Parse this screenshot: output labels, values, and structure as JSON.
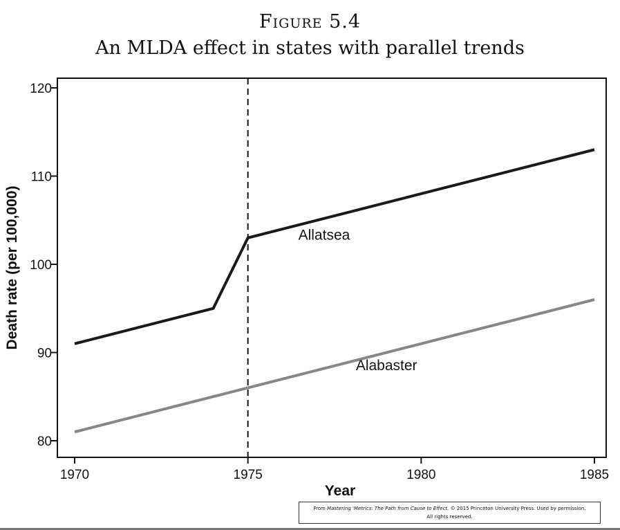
{
  "figure": {
    "label": "Figure 5.4",
    "title": "An MLDA effect in states with parallel trends"
  },
  "credit": {
    "prefix": "From ",
    "book": "Mastering 'Metrics: The Path from Cause to Effect.",
    "suffix": " © 2015 Princeton University Press. Used by permission.",
    "line2": "All rights reserved."
  },
  "chart_data": {
    "type": "line",
    "xlabel": "Year",
    "ylabel": "Death rate (per 100,000)",
    "xlim": [
      1970,
      1985
    ],
    "ylim": [
      80,
      120
    ],
    "xticks": [
      1970,
      1975,
      1980,
      1985
    ],
    "yticks": [
      80,
      90,
      100,
      110,
      120
    ],
    "grid": false,
    "vline": {
      "x": 1975,
      "style": "dashed"
    },
    "series": [
      {
        "name": "Allatsea",
        "color": "#1a1a1a",
        "x": [
          1970,
          1974,
          1975,
          1985
        ],
        "y": [
          91,
          95,
          103,
          113
        ],
        "label_at": [
          1977.2,
          102.8
        ]
      },
      {
        "name": "Alabaster",
        "color": "#878787",
        "x": [
          1970,
          1985
        ],
        "y": [
          81,
          96
        ],
        "label_at": [
          1979.0,
          88.0
        ]
      }
    ]
  }
}
